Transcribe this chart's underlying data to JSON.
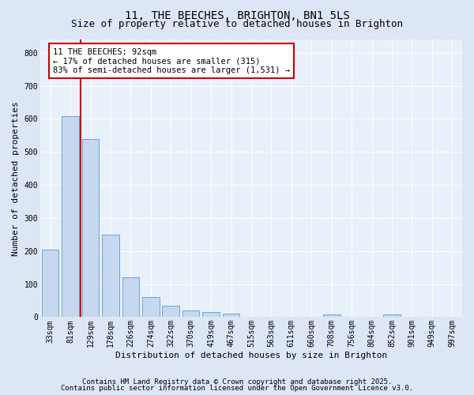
{
  "title": "11, THE BEECHES, BRIGHTON, BN1 5LS",
  "subtitle": "Size of property relative to detached houses in Brighton",
  "xlabel": "Distribution of detached houses by size in Brighton",
  "ylabel": "Number of detached properties",
  "footnote1": "Contains HM Land Registry data © Crown copyright and database right 2025.",
  "footnote2": "Contains public sector information licensed under the Open Government Licence v3.0.",
  "categories": [
    "33sqm",
    "81sqm",
    "129sqm",
    "178sqm",
    "226sqm",
    "274sqm",
    "322sqm",
    "370sqm",
    "419sqm",
    "467sqm",
    "515sqm",
    "563sqm",
    "611sqm",
    "660sqm",
    "708sqm",
    "756sqm",
    "804sqm",
    "852sqm",
    "901sqm",
    "949sqm",
    "997sqm"
  ],
  "values": [
    203,
    607,
    540,
    250,
    120,
    60,
    35,
    20,
    15,
    10,
    0,
    0,
    0,
    0,
    7,
    0,
    0,
    8,
    0,
    0,
    0
  ],
  "bar_color": "#c5d8ef",
  "bar_edge_color": "#5b9bd5",
  "vline_color": "#cc0000",
  "vline_x": 1.5,
  "annotation_text": "11 THE BEECHES: 92sqm\n← 17% of detached houses are smaller (315)\n83% of semi-detached houses are larger (1,531) →",
  "annotation_box_color": "#ffffff",
  "annotation_box_edge": "#cc0000",
  "ylim": [
    0,
    840
  ],
  "yticks": [
    0,
    100,
    200,
    300,
    400,
    500,
    600,
    700,
    800
  ],
  "bg_color": "#dce6f5",
  "plot_bg_color": "#e8f0fa",
  "grid_color": "#ffffff",
  "title_fontsize": 10,
  "subtitle_fontsize": 9,
  "axis_label_fontsize": 8,
  "tick_fontsize": 7,
  "annotation_fontsize": 7.5,
  "footnote_fontsize": 6.5
}
